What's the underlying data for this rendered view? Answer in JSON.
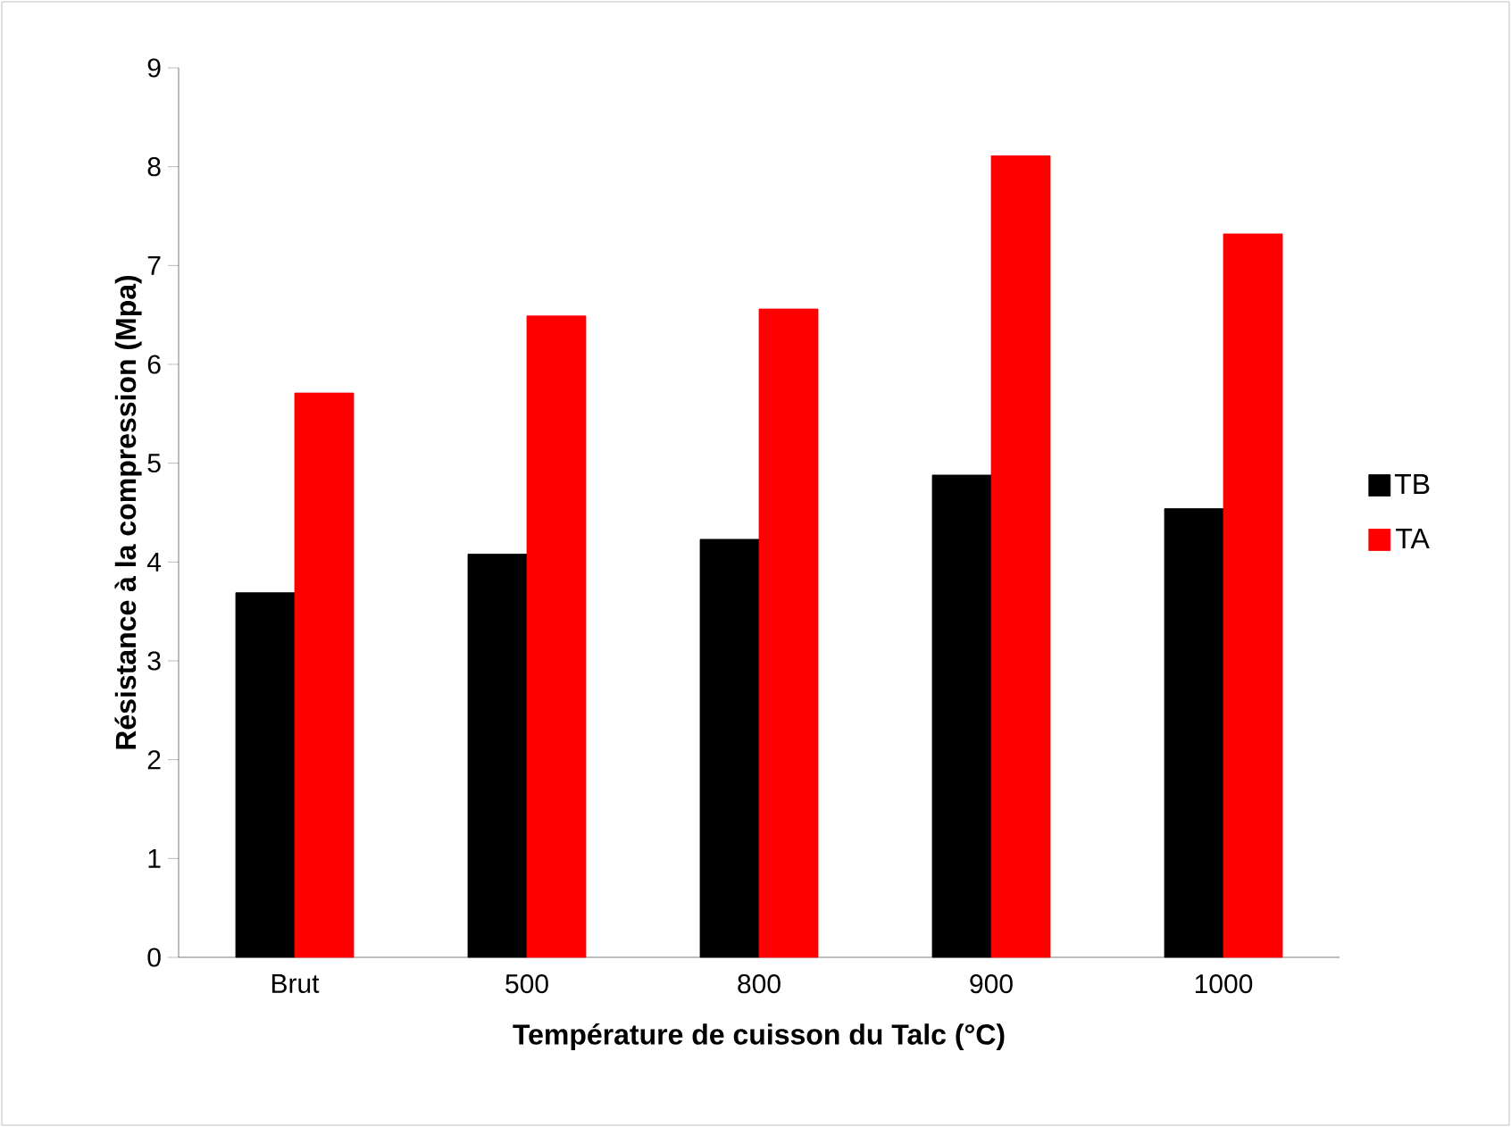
{
  "chart_data": {
    "type": "bar",
    "xlabel": "Température de cuisson du Talc (°C)",
    "ylabel": "Résistance à la compression (Mpa)",
    "categories": [
      "Brut",
      "500",
      "800",
      "900",
      "1000"
    ],
    "series": [
      {
        "name": "TB",
        "color": "#000000",
        "values": [
          3.69,
          4.08,
          4.23,
          4.88,
          4.54
        ]
      },
      {
        "name": "TA",
        "color": "#ff0000",
        "values": [
          5.71,
          6.49,
          6.56,
          8.11,
          7.32
        ]
      }
    ],
    "ylim": [
      0,
      9
    ],
    "yticks": [
      0,
      1,
      2,
      3,
      4,
      5,
      6,
      7,
      8,
      9
    ],
    "grid": false,
    "legend": "right"
  }
}
